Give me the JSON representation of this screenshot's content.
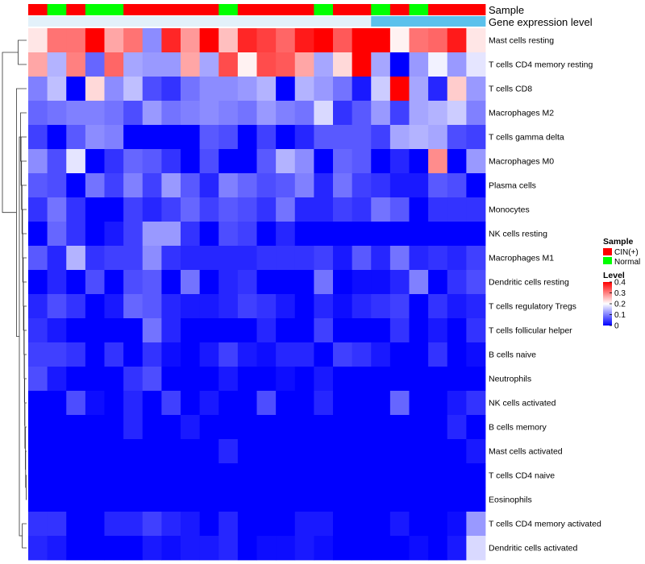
{
  "chart_data": {
    "type": "heatmap",
    "column_annotations": [
      {
        "name": "Sample",
        "values": [
          "CIN(+)",
          "Normal",
          "CIN(+)",
          "Normal",
          "Normal",
          "CIN(+)",
          "CIN(+)",
          "CIN(+)",
          "CIN(+)",
          "CIN(+)",
          "Normal",
          "CIN(+)",
          "CIN(+)",
          "CIN(+)",
          "CIN(+)",
          "Normal",
          "CIN(+)",
          "CIN(+)",
          "Normal",
          "CIN(+)",
          "Normal",
          "CIN(+)",
          "CIN(+)",
          "CIN(+)"
        ]
      },
      {
        "name": "Gene expression level",
        "values": [
          "Low",
          "Low",
          "Low",
          "Low",
          "Low",
          "Low",
          "Low",
          "Low",
          "Low",
          "Low",
          "Low",
          "Low",
          "Low",
          "Low",
          "Low",
          "Low",
          "Low",
          "Low",
          "High",
          "High",
          "High",
          "High",
          "High",
          "High"
        ],
        "colors": {
          "Low": "#E3F1FA",
          "High": "#5BC1EC"
        }
      }
    ],
    "rows": [
      "Mast cells resting",
      "T cells CD4 memory resting",
      "T cells CD8",
      "Macrophages M2",
      "T cells gamma delta",
      "Macrophages M0",
      "Plasma cells",
      "Monocytes",
      "NK cells resting",
      "Macrophages M1",
      "Dendritic cells resting",
      "T cells regulatory  Tregs",
      "T cells follicular helper",
      "B cells naive",
      "Neutrophils",
      "NK cells activated",
      "B cells memory",
      "Mast cells activated",
      "T cells CD4 naive",
      "Eosinophils",
      "T cells CD4 memory activated",
      "Dendritic cells activated"
    ],
    "values": [
      [
        0.22,
        0.31,
        0.31,
        0.4,
        0.27,
        0.31,
        0.11,
        0.37,
        0.28,
        0.4,
        0.25,
        0.37,
        0.35,
        0.32,
        0.38,
        0.4,
        0.33,
        0.4,
        0.4,
        0.21,
        0.31,
        0.32,
        0.38,
        0.22
      ],
      [
        0.27,
        0.14,
        0.3,
        0.08,
        0.32,
        0.13,
        0.12,
        0.12,
        0.27,
        0.13,
        0.34,
        0.21,
        0.34,
        0.33,
        0.27,
        0.13,
        0.23,
        0.4,
        0.13,
        0.0,
        0.12,
        0.19,
        0.12,
        0.18
      ],
      [
        0.1,
        0.15,
        0.0,
        0.23,
        0.11,
        0.15,
        0.06,
        0.04,
        0.09,
        0.11,
        0.11,
        0.12,
        0.14,
        0.0,
        0.14,
        0.12,
        0.09,
        0.02,
        0.16,
        0.4,
        0.13,
        0.03,
        0.24,
        0.12
      ],
      [
        0.08,
        0.09,
        0.1,
        0.1,
        0.09,
        0.06,
        0.12,
        0.09,
        0.1,
        0.11,
        0.1,
        0.09,
        0.12,
        0.1,
        0.09,
        0.17,
        0.04,
        0.07,
        0.12,
        0.05,
        0.13,
        0.14,
        0.16,
        0.1
      ],
      [
        0.05,
        0.0,
        0.07,
        0.11,
        0.1,
        0.0,
        0.0,
        0.0,
        0.0,
        0.07,
        0.06,
        0.0,
        0.05,
        0.0,
        0.03,
        0.07,
        0.07,
        0.07,
        0.05,
        0.13,
        0.14,
        0.13,
        0.06,
        0.05
      ],
      [
        0.11,
        0.06,
        0.18,
        0.0,
        0.04,
        0.08,
        0.07,
        0.04,
        0.0,
        0.06,
        0.0,
        0.0,
        0.07,
        0.14,
        0.11,
        0.0,
        0.08,
        0.07,
        0.0,
        0.03,
        0.0,
        0.29,
        0.0,
        0.12
      ],
      [
        0.07,
        0.06,
        0.0,
        0.09,
        0.05,
        0.1,
        0.05,
        0.12,
        0.07,
        0.03,
        0.1,
        0.08,
        0.06,
        0.07,
        0.1,
        0.03,
        0.09,
        0.05,
        0.04,
        0.02,
        0.02,
        0.07,
        0.06,
        0.0
      ],
      [
        0.04,
        0.09,
        0.04,
        0.0,
        0.0,
        0.05,
        0.03,
        0.05,
        0.08,
        0.05,
        0.07,
        0.06,
        0.04,
        0.09,
        0.03,
        0.03,
        0.05,
        0.04,
        0.09,
        0.07,
        0.0,
        0.04,
        0.04,
        0.04
      ],
      [
        0.0,
        0.08,
        0.04,
        0.0,
        0.02,
        0.05,
        0.12,
        0.12,
        0.04,
        0.0,
        0.06,
        0.05,
        0.0,
        0.03,
        0.0,
        0.0,
        0.0,
        0.0,
        0.0,
        0.0,
        0.0,
        0.0,
        0.0,
        0.0
      ],
      [
        0.07,
        0.03,
        0.14,
        0.04,
        0.05,
        0.05,
        0.11,
        0.04,
        0.03,
        0.03,
        0.03,
        0.03,
        0.04,
        0.04,
        0.04,
        0.05,
        0.02,
        0.07,
        0.03,
        0.09,
        0.03,
        0.04,
        0.03,
        0.05
      ],
      [
        0.0,
        0.03,
        0.0,
        0.06,
        0.0,
        0.06,
        0.07,
        0.0,
        0.09,
        0.0,
        0.03,
        0.04,
        0.0,
        0.0,
        0.0,
        0.09,
        0.0,
        0.01,
        0.01,
        0.03,
        0.1,
        0.0,
        0.04,
        0.06
      ],
      [
        0.03,
        0.06,
        0.04,
        0.0,
        0.02,
        0.08,
        0.07,
        0.03,
        0.02,
        0.02,
        0.03,
        0.05,
        0.04,
        0.02,
        0.0,
        0.03,
        0.01,
        0.03,
        0.04,
        0.05,
        0.0,
        0.04,
        0.02,
        0.03
      ],
      [
        0.04,
        0.02,
        0.0,
        0.0,
        0.0,
        0.0,
        0.09,
        0.03,
        0.0,
        0.0,
        0.0,
        0.0,
        0.03,
        0.0,
        0.0,
        0.05,
        0.0,
        0.0,
        0.0,
        0.04,
        0.0,
        0.02,
        0.0,
        0.04
      ],
      [
        0.05,
        0.05,
        0.04,
        0.0,
        0.04,
        0.0,
        0.04,
        0.01,
        0.0,
        0.02,
        0.05,
        0.02,
        0.01,
        0.03,
        0.03,
        0.0,
        0.05,
        0.04,
        0.02,
        0.0,
        0.0,
        0.04,
        0.0,
        0.01
      ],
      [
        0.06,
        0.02,
        0.0,
        0.0,
        0.0,
        0.04,
        0.06,
        0.0,
        0.0,
        0.0,
        0.02,
        0.0,
        0.0,
        0.01,
        0.0,
        0.02,
        0.0,
        0.0,
        0.0,
        0.0,
        0.0,
        0.0,
        0.0,
        0.0
      ],
      [
        0.0,
        0.0,
        0.06,
        0.01,
        0.0,
        0.03,
        0.0,
        0.05,
        0.0,
        0.02,
        0.0,
        0.0,
        0.06,
        0.0,
        0.0,
        0.03,
        0.0,
        0.0,
        0.0,
        0.08,
        0.0,
        0.0,
        0.02,
        0.04
      ],
      [
        0.0,
        0.0,
        0.0,
        0.0,
        0.0,
        0.03,
        0.0,
        0.0,
        0.02,
        0.0,
        0.0,
        0.0,
        0.0,
        0.0,
        0.0,
        0.0,
        0.0,
        0.0,
        0.0,
        0.0,
        0.0,
        0.0,
        0.03,
        0.0
      ],
      [
        0.0,
        0.0,
        0.0,
        0.0,
        0.0,
        0.0,
        0.0,
        0.0,
        0.0,
        0.0,
        0.03,
        0.0,
        0.0,
        0.0,
        0.0,
        0.0,
        0.0,
        0.0,
        0.0,
        0.0,
        0.0,
        0.0,
        0.0,
        0.02
      ],
      [
        0.0,
        0.0,
        0.0,
        0.0,
        0.0,
        0.0,
        0.0,
        0.0,
        0.0,
        0.0,
        0.0,
        0.0,
        0.0,
        0.0,
        0.0,
        0.0,
        0.0,
        0.0,
        0.0,
        0.0,
        0.0,
        0.0,
        0.0,
        0.0
      ],
      [
        0.0,
        0.0,
        0.0,
        0.0,
        0.0,
        0.0,
        0.0,
        0.0,
        0.0,
        0.0,
        0.0,
        0.0,
        0.0,
        0.0,
        0.0,
        0.0,
        0.0,
        0.0,
        0.0,
        0.0,
        0.0,
        0.0,
        0.0,
        0.0
      ],
      [
        0.04,
        0.04,
        0.0,
        0.0,
        0.03,
        0.03,
        0.05,
        0.03,
        0.02,
        0.0,
        0.03,
        0.0,
        0.0,
        0.0,
        0.02,
        0.02,
        0.0,
        0.0,
        0.0,
        0.02,
        0.0,
        0.0,
        0.01,
        0.12
      ],
      [
        0.03,
        0.02,
        0.0,
        0.0,
        0.0,
        0.0,
        0.02,
        0.01,
        0.02,
        0.02,
        0.03,
        0.0,
        0.01,
        0.01,
        0.02,
        0.01,
        0.0,
        0.0,
        0.0,
        0.0,
        0.01,
        0.0,
        0.02,
        0.17
      ]
    ],
    "dendrogram": {
      "merges": [
        [
          0,
          1
        ],
        [
          18,
          19
        ],
        [
          17,
          "m1"
        ],
        [
          16,
          "m2"
        ],
        [
          15,
          "m3"
        ],
        [
          14,
          "m4"
        ],
        [
          13,
          "m5"
        ],
        [
          12,
          "m6"
        ],
        [
          11,
          "m7"
        ],
        [
          10,
          "m8"
        ],
        [
          9,
          "m9"
        ],
        [
          8,
          "m10"
        ],
        [
          7,
          "m11"
        ],
        [
          6,
          "m12"
        ],
        [
          5,
          "m13"
        ],
        [
          4,
          "m14"
        ],
        [
          3,
          "m15"
        ],
        [
          20,
          21
        ],
        [
          "m16",
          "m17"
        ],
        [
          2,
          "m18"
        ],
        [
          "m0",
          "m19"
        ]
      ],
      "heights": [
        0.35,
        0.02,
        0.04,
        0.05,
        0.07,
        0.08,
        0.09,
        0.1,
        0.11,
        0.13,
        0.14,
        0.16,
        0.17,
        0.19,
        0.21,
        0.23,
        0.25,
        0.18,
        0.3,
        0.42,
        1.0
      ]
    },
    "legend": {
      "Sample": {
        "title": "Sample",
        "entries": [
          {
            "label": "CIN(+)",
            "color": "#FF0000"
          },
          {
            "label": "Normal",
            "color": "#00FF00"
          }
        ]
      },
      "Level": {
        "title": "Level",
        "ticks": [
          0.4,
          0.3,
          0.2,
          0.1,
          0
        ],
        "tick_labels": [
          "0.4",
          "0.3",
          "0.2",
          "0.1",
          "0"
        ],
        "range": [
          0,
          0.4
        ]
      }
    },
    "color_scale": {
      "low": "#0000FF",
      "mid": "#FFFFFF",
      "high": "#FF0000",
      "domain": [
        0,
        0.2,
        0.4
      ]
    }
  }
}
